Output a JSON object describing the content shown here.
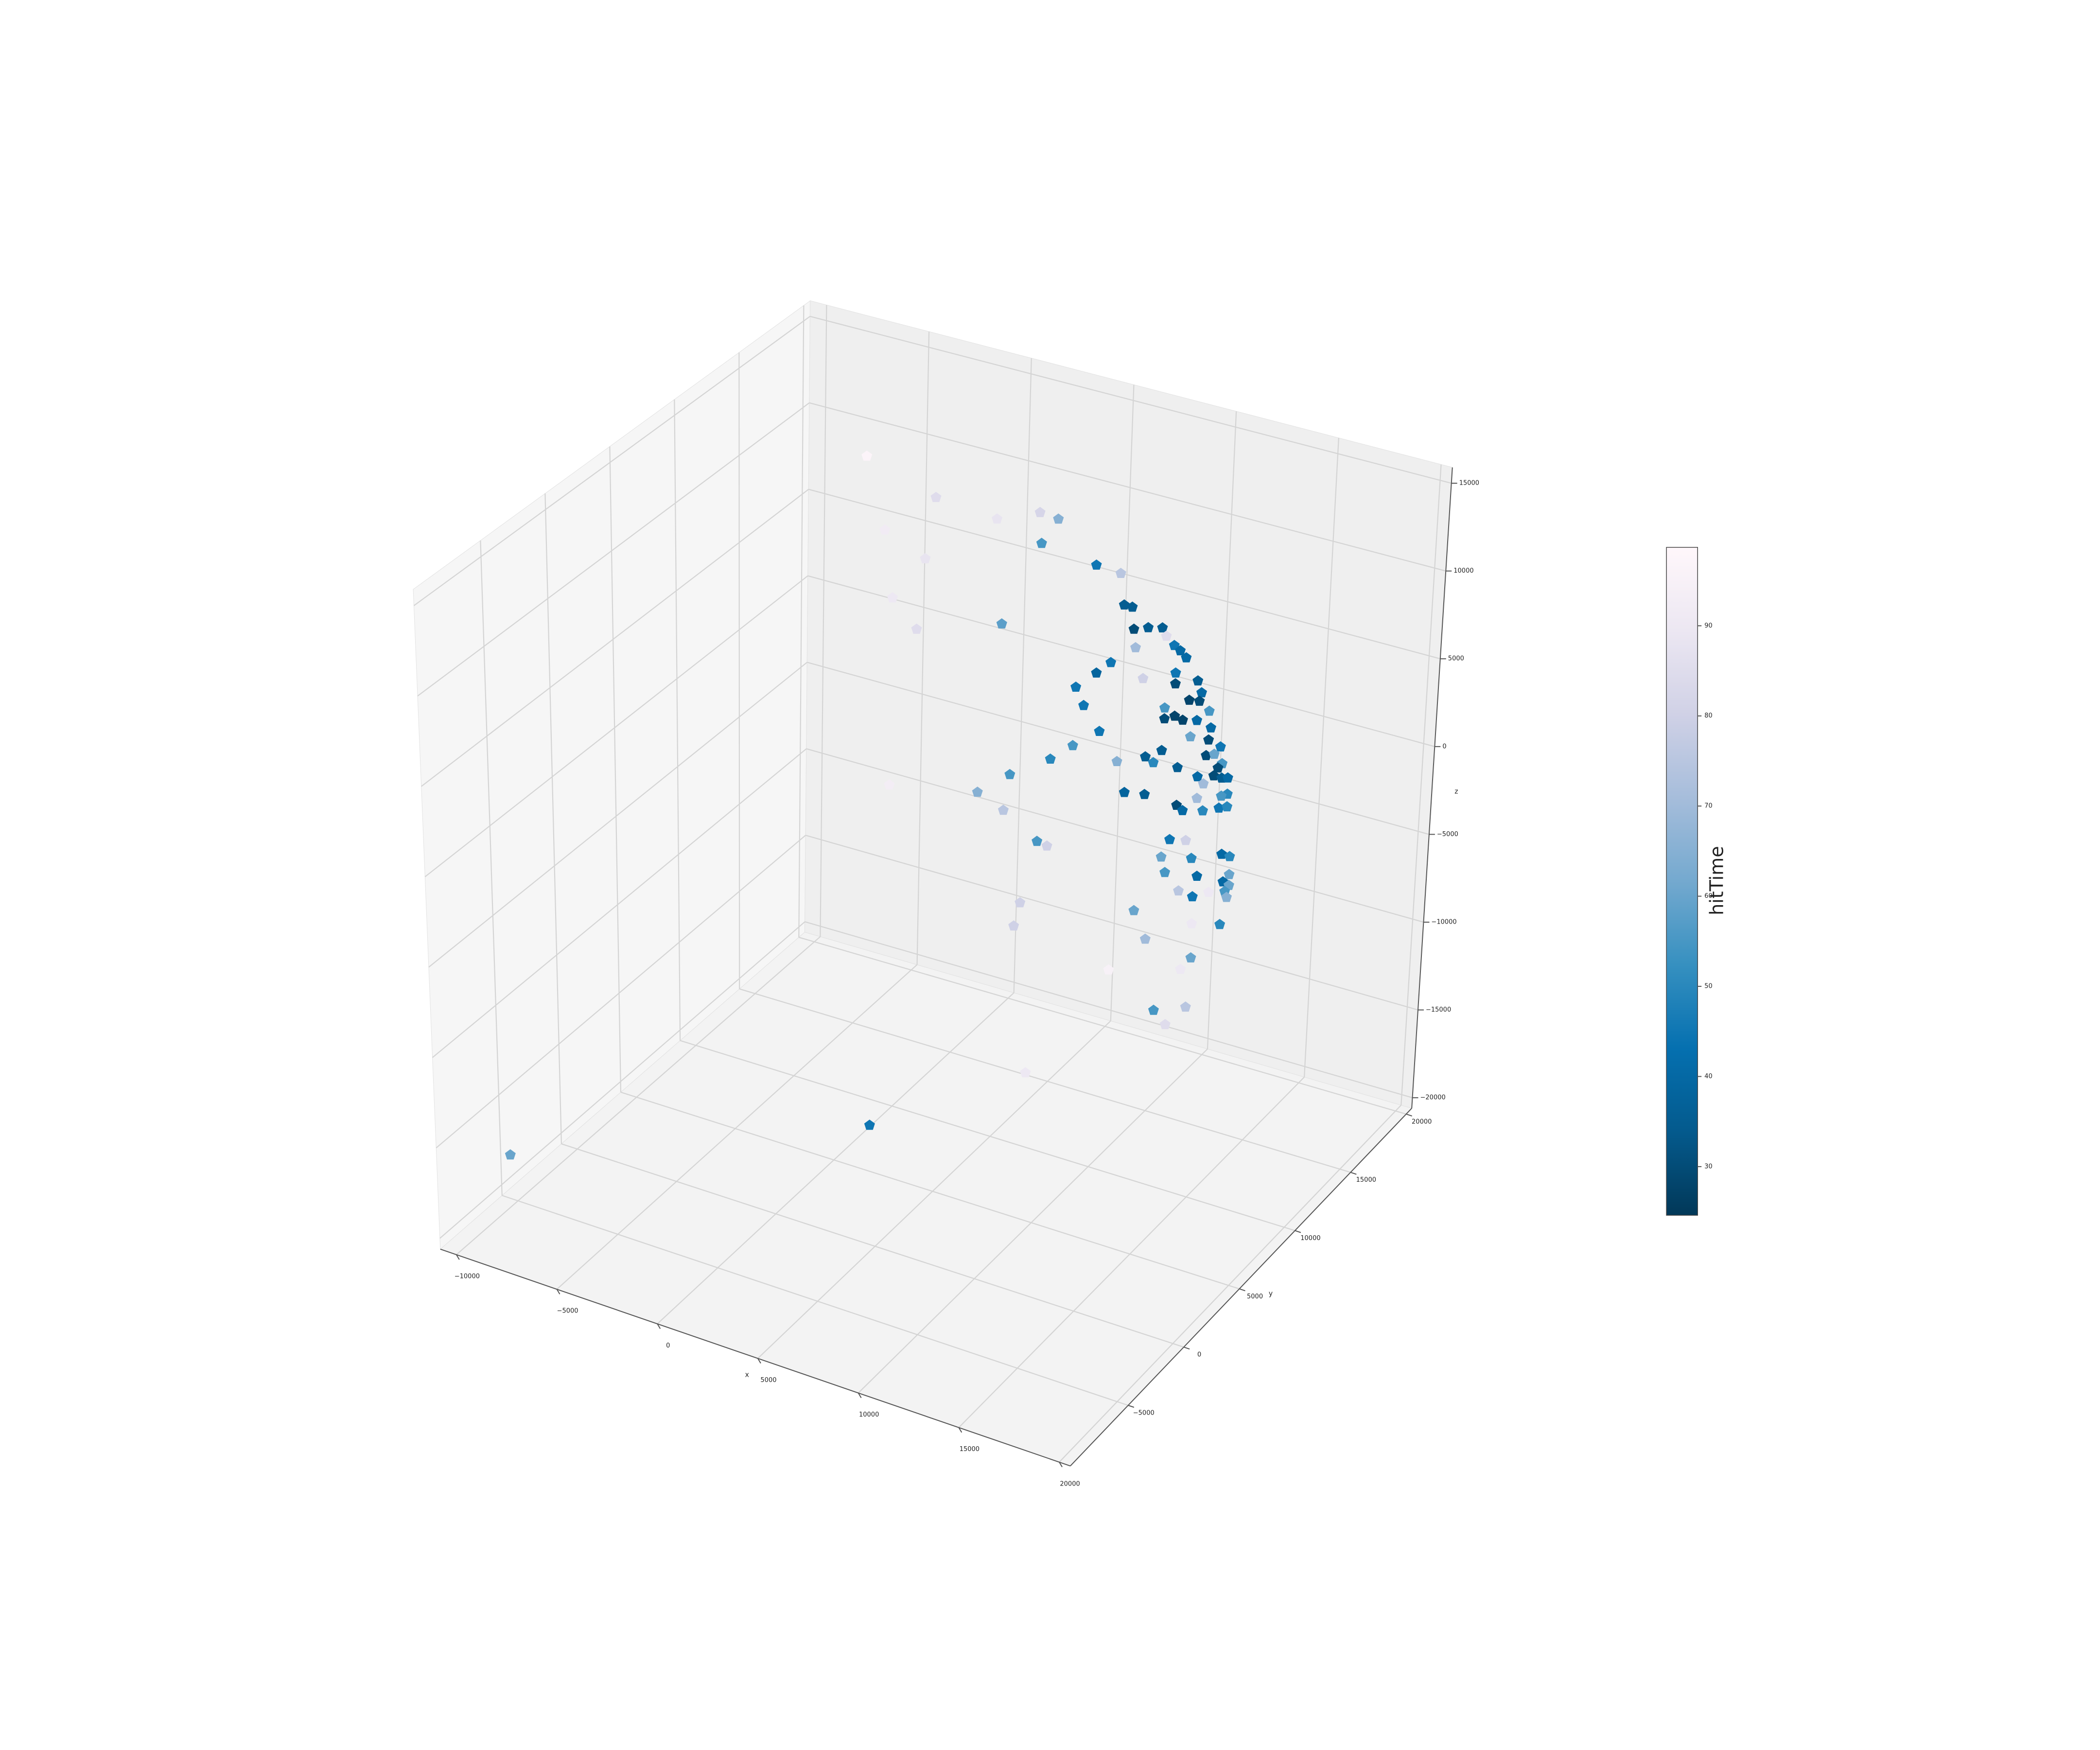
{
  "chart_data": {
    "type": "scatter3d",
    "xlabel": "x",
    "ylabel": "y",
    "zlabel": "z",
    "colorbar_label": "hitTime",
    "xlim": [
      -10800,
      20550
    ],
    "ylim": [
      -10200,
      20500
    ],
    "zlim": [
      -20600,
      15900
    ],
    "xticks": [
      {
        "value": -10000,
        "label": "−10000"
      },
      {
        "value": -5000,
        "label": "−5000"
      },
      0,
      5000,
      10000,
      15000,
      20000
    ],
    "yticks": [
      {
        "value": -5000,
        "label": "−5000"
      },
      0,
      5000,
      10000,
      15000,
      20000
    ],
    "zticks": [
      {
        "value": -20000,
        "label": "−20000"
      },
      {
        "value": -15000,
        "label": "−15000"
      },
      {
        "value": -10000,
        "label": "−10000"
      },
      {
        "value": -5000,
        "label": "−5000"
      },
      0,
      5000,
      10000,
      15000
    ],
    "clim": [
      24.6,
      98.7
    ],
    "cticks": [
      30,
      40,
      50,
      60,
      70,
      80,
      90
    ],
    "colormap": [
      "#023858",
      "#045a8d",
      "#0570b0",
      "#3690c0",
      "#74a9cf",
      "#a6bddb",
      "#d0d1e6",
      "#ece7f2",
      "#fff7fb"
    ],
    "grid": true,
    "x": [
      -2200,
      1200,
      4200,
      6300,
      7200,
      -1300,
      6400,
      700,
      9100,
      10300,
      -900,
      10500,
      10900,
      300,
      4500,
      11000,
      11700,
      12400,
      12600,
      11100,
      13000,
      13300,
      13600,
      9900,
      13100,
      9200,
      11500,
      13100,
      14200,
      8200,
      14400,
      13800,
      14300,
      8600,
      12600,
      14800,
      13100,
      12600,
      13500,
      14200,
      14900,
      9400,
      13900,
      14800,
      15400,
      8100,
      12500,
      11700,
      14700,
      12100,
      15100,
      15500,
      10300,
      15300,
      13300,
      7000,
      14300,
      15100,
      15500,
      15800,
      14600,
      5000,
      10700,
      15800,
      15500,
      3400,
      11700,
      14300,
      13300,
      13600,
      14600,
      15400,
      15800,
      -1000,
      4700,
      13000,
      13800,
      6400,
      6900,
      12600,
      14100,
      15600,
      16000,
      12800,
      14400,
      16000,
      15700,
      16000,
      13500,
      15000,
      14200,
      15800,
      15900,
      5600,
      11300,
      5300,
      14200,
      15600,
      11900,
      14200,
      10100,
      13700,
      12400,
      14000,
      13000,
      6000,
      1700,
      -10500
    ],
    "y": [
      11300,
      11300,
      11300,
      11300,
      11300,
      11300,
      11300,
      11300,
      11300,
      11300,
      11300,
      11300,
      11300,
      11300,
      11300,
      11300,
      11300,
      11300,
      11300,
      11300,
      11300,
      11300,
      11300,
      11300,
      11300,
      11300,
      11300,
      11300,
      11300,
      11300,
      11300,
      11300,
      11300,
      11300,
      11300,
      11300,
      11300,
      11300,
      11300,
      11300,
      11300,
      11300,
      11300,
      11300,
      11300,
      11300,
      11300,
      11300,
      11300,
      11300,
      11300,
      11300,
      11300,
      11300,
      11300,
      11300,
      11300,
      11300,
      11300,
      11300,
      11300,
      11300,
      11300,
      11300,
      11300,
      11300,
      11300,
      11300,
      11300,
      11300,
      11300,
      11300,
      11300,
      11300,
      11300,
      11300,
      11300,
      11300,
      11300,
      11300,
      11300,
      11300,
      11300,
      11300,
      11300,
      11300,
      11300,
      11300,
      11300,
      11300,
      11300,
      11300,
      11300,
      11300,
      11300,
      11300,
      11300,
      11300,
      11300,
      11300,
      11300,
      11300,
      11300,
      11300,
      11300,
      11300,
      5200,
      -4700
    ],
    "z": [
      14600,
      13300,
      13000,
      14000,
      13900,
      10700,
      12300,
      9700,
      11900,
      11800,
      7000,
      10100,
      10100,
      5600,
      7200,
      8900,
      9200,
      9400,
      9000,
      7900,
      8600,
      8400,
      8100,
      6700,
      7100,
      5900,
      6300,
      6500,
      7000,
      4800,
      6400,
      5800,
      5900,
      3900,
      5000,
      5500,
      4700,
      4400,
      4600,
      4800,
      4600,
      2700,
      3800,
      3900,
      3700,
      1500,
      2600,
      2000,
      3000,
      1800,
      3200,
      2800,
      1300,
      2500,
      1900,
      400,
      1700,
      2000,
      2000,
      2100,
      1400,
      -1100,
      -300,
      1200,
      1000,
      -2600,
      -100,
      500,
      -200,
      -400,
      -100,
      300,
      500,
      -3600,
      -3200,
      -2200,
      -2000,
      -4400,
      -4500,
      -3300,
      -2900,
      -2200,
      -2200,
      -4100,
      -3800,
      -3200,
      -3700,
      -3800,
      -4900,
      -4500,
      -5000,
      -4200,
      -4500,
      -8100,
      -6700,
      -9500,
      -6500,
      -6100,
      -8100,
      -8400,
      -10400,
      -9200,
      -11900,
      -11200,
      -12500,
      -17500,
      -18200,
      -18400
    ],
    "c": [
      97,
      85,
      88,
      82,
      65,
      92,
      55,
      88,
      45,
      75,
      90,
      35,
      35,
      85,
      58,
      30,
      35,
      35,
      85,
      70,
      45,
      40,
      40,
      45,
      45,
      38,
      80,
      30,
      35,
      45,
      40,
      28,
      30,
      45,
      55,
      55,
      28,
      30,
      28,
      40,
      40,
      45,
      60,
      30,
      45,
      55,
      35,
      35,
      30,
      50,
      60,
      55,
      65,
      30,
      35,
      50,
      40,
      30,
      35,
      40,
      70,
      55,
      38,
      50,
      55,
      65,
      35,
      70,
      30,
      40,
      50,
      45,
      50,
      93,
      75,
      45,
      80,
      55,
      80,
      60,
      50,
      40,
      50,
      55,
      40,
      60,
      40,
      60,
      75,
      90,
      45,
      55,
      65,
      80,
      60,
      80,
      90,
      50,
      70,
      60,
      95,
      90,
      55,
      75,
      85,
      90,
      45,
      60
    ]
  }
}
